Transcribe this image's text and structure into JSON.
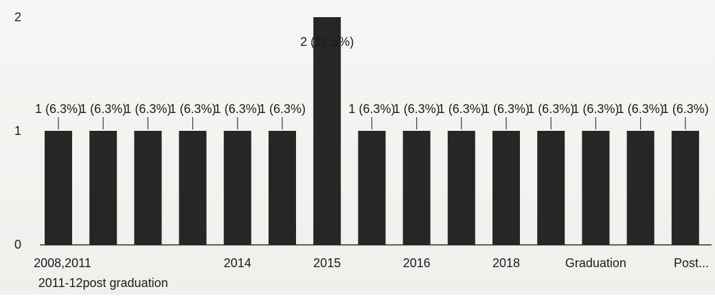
{
  "chart_data": {
    "type": "bar",
    "categories": [
      "2008,2011",
      "2011-12post graduation",
      "",
      "",
      "2014",
      "",
      "2015",
      "",
      "2016",
      "",
      "2018",
      "",
      "Graduation",
      "",
      "Post..."
    ],
    "values": [
      1,
      1,
      1,
      1,
      1,
      1,
      2,
      1,
      1,
      1,
      1,
      1,
      1,
      1,
      1
    ],
    "data_labels": [
      "1 (6.3%)",
      "1 (6.3%)",
      "1 (6.3%)",
      "1 (6.3%)",
      "1 (6.3%)",
      "1 (6.3%)",
      "2 (12.5%)",
      "1 (6.3%)",
      "1 (6.3%)",
      "1 (6.3%)",
      "1 (6.3%)",
      "1 (6.3%)",
      "1 (6.3%)",
      "1 (6.3%)",
      "1 (6.3%)"
    ],
    "y_ticks": [
      "0",
      "1",
      "2"
    ],
    "ylim": [
      0,
      2
    ],
    "grid": false,
    "legend": "none",
    "title": "",
    "xlabel": "",
    "ylabel": "",
    "colors": {
      "bar": "#262626",
      "axis": "#2a2a2a",
      "text": "#1c1c1c"
    }
  }
}
